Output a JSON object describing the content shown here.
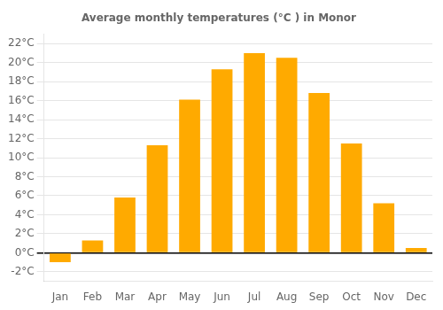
{
  "chart_data": {
    "type": "bar",
    "title": "Average monthly temperatures (°C ) in Monor",
    "categories": [
      "Jan",
      "Feb",
      "Mar",
      "Apr",
      "May",
      "Jun",
      "Jul",
      "Aug",
      "Sep",
      "Oct",
      "Nov",
      "Dec"
    ],
    "values": [
      -1.0,
      1.3,
      5.8,
      11.3,
      16.1,
      19.3,
      21.0,
      20.5,
      16.8,
      11.5,
      5.2,
      0.5
    ],
    "color": "#FFAA00",
    "ylim": [
      -3,
      23
    ],
    "yticks": [
      {
        "value": -2,
        "label": "-2°C"
      },
      {
        "value": 0,
        "label": "0°C"
      },
      {
        "value": 2,
        "label": "2°C"
      },
      {
        "value": 4,
        "label": "4°C"
      },
      {
        "value": 6,
        "label": "6°C"
      },
      {
        "value": 8,
        "label": "8°C"
      },
      {
        "value": 10,
        "label": "10°C"
      },
      {
        "value": 12,
        "label": "12°C"
      },
      {
        "value": 14,
        "label": "14°C"
      },
      {
        "value": 16,
        "label": "16°C"
      },
      {
        "value": 18,
        "label": "18°C"
      },
      {
        "value": 20,
        "label": "20°C"
      },
      {
        "value": 22,
        "label": "22°C"
      }
    ],
    "grid": "y"
  }
}
